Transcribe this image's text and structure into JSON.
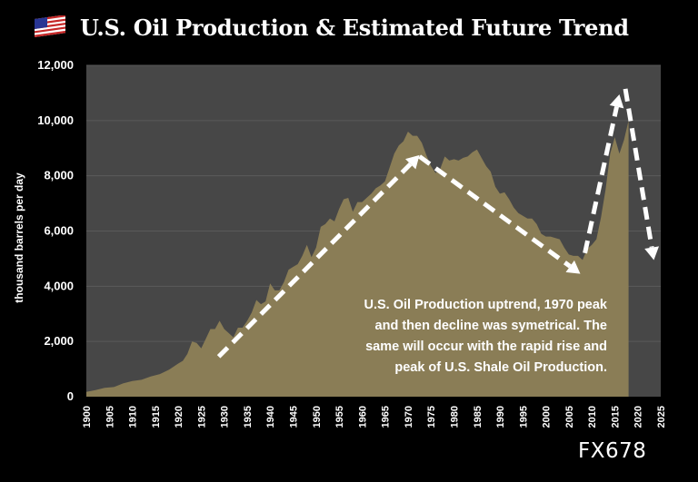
{
  "title": "U.S. Oil Production & Estimated Future Trend",
  "flag_icon": "us-flag-icon",
  "watermark": "FX678",
  "colors": {
    "background": "#000000",
    "plot_background": "#474747",
    "area_fill": "#8a7d56",
    "grid": "#5a5a5a",
    "text": "#ffffff",
    "arrow": "#ffffff"
  },
  "chart_data": {
    "type": "area",
    "title": "U.S. Oil Production & Estimated Future Trend",
    "xlabel": "",
    "ylabel": "thousand barrels per day",
    "xlim": [
      1900,
      2025
    ],
    "ylim": [
      0,
      12000
    ],
    "xticks": [
      "1900",
      "1905",
      "1910",
      "1915",
      "1920",
      "1925",
      "1930",
      "1935",
      "1940",
      "1945",
      "1950",
      "1955",
      "1960",
      "1965",
      "1970",
      "1975",
      "1980",
      "1985",
      "1990",
      "1995",
      "2000",
      "2005",
      "2010",
      "2015",
      "2020",
      "2025"
    ],
    "yticks": [
      "0",
      "2,000",
      "4,000",
      "6,000",
      "8,000",
      "10,000",
      "12,000"
    ],
    "grid": true,
    "series": [
      {
        "x": [
          1900,
          1902,
          1904,
          1906,
          1908,
          1910,
          1912,
          1914,
          1916,
          1918,
          1920,
          1921,
          1922,
          1923,
          1924,
          1925,
          1926,
          1927,
          1928,
          1929,
          1930,
          1931,
          1932,
          1933,
          1934,
          1935,
          1936,
          1937,
          1938,
          1939,
          1940,
          1941,
          1942,
          1943,
          1944,
          1945,
          1946,
          1947,
          1948,
          1949,
          1950,
          1951,
          1952,
          1953,
          1954,
          1955,
          1956,
          1957,
          1958,
          1959,
          1960,
          1961,
          1962,
          1963,
          1964,
          1965,
          1966,
          1967,
          1968,
          1969,
          1970,
          1971,
          1972,
          1973,
          1974,
          1975,
          1976,
          1977,
          1978,
          1979,
          1980,
          1981,
          1982,
          1983,
          1984,
          1985,
          1986,
          1987,
          1988,
          1989,
          1990,
          1991,
          1992,
          1993,
          1994,
          1995,
          1996,
          1997,
          1998,
          1999,
          2000,
          2001,
          2002,
          2003,
          2004,
          2005,
          2006,
          2007,
          2008,
          2009,
          2010,
          2011,
          2012,
          2013,
          2014,
          2015,
          2016,
          2017,
          2018
        ],
        "values": [
          170,
          240,
          320,
          350,
          480,
          570,
          610,
          730,
          820,
          980,
          1200,
          1300,
          1550,
          2000,
          1950,
          1750,
          2100,
          2450,
          2450,
          2750,
          2450,
          2300,
          2150,
          2500,
          2500,
          2750,
          3050,
          3500,
          3350,
          3450,
          4100,
          3850,
          3850,
          4150,
          4600,
          4700,
          4800,
          5100,
          5500,
          5050,
          5400,
          6150,
          6250,
          6450,
          6350,
          6800,
          7150,
          7200,
          6700,
          7050,
          7050,
          7200,
          7350,
          7550,
          7650,
          7800,
          8300,
          8800,
          9100,
          9250,
          9600,
          9450,
          9450,
          9200,
          8750,
          8350,
          8100,
          8250,
          8700,
          8550,
          8600,
          8550,
          8650,
          8700,
          8850,
          8950,
          8650,
          8350,
          8150,
          7600,
          7350,
          7400,
          7150,
          6850,
          6650,
          6550,
          6450,
          6450,
          6250,
          5900,
          5800,
          5800,
          5750,
          5700,
          5400,
          5150,
          5100,
          5100,
          4950,
          5350,
          5500,
          5700,
          6500,
          7500,
          8800,
          9400,
          8800,
          9300,
          10000
        ]
      }
    ],
    "annotation": [
      "U.S. Oil Production uptrend, 1970 peak",
      "and then decline was symetrical. The",
      "same will occur with the rapid rise and",
      "peak  of U.S. Shale Oil Production."
    ]
  }
}
